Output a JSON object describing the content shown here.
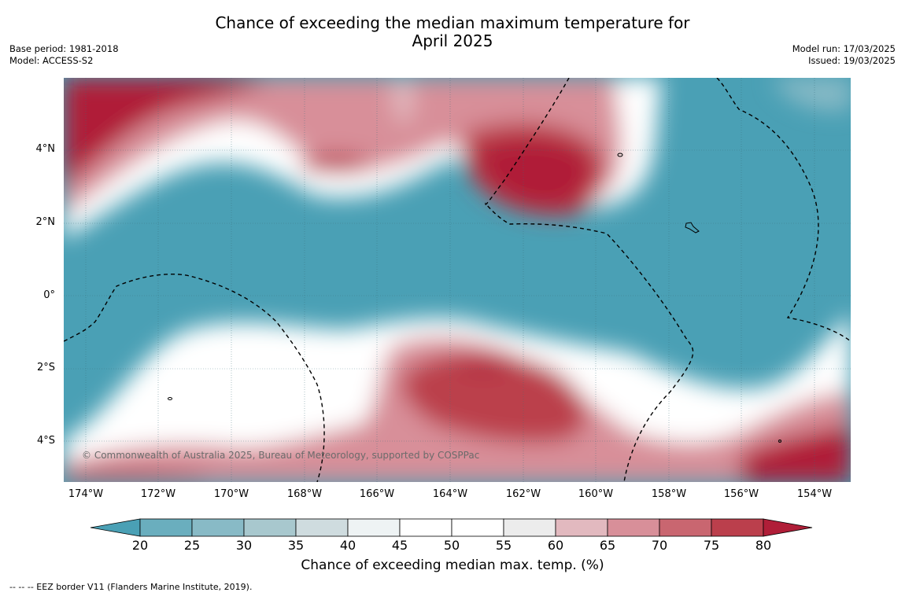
{
  "title_line1": "Chance of exceeding the median maximum temperature for",
  "title_line2": "April 2025",
  "meta_left": {
    "base_period": "Base period: 1981-2018",
    "model": "Model: ACCESS-S2"
  },
  "meta_right": {
    "model_run": "Model run: 17/03/2025",
    "issued": "Issued: 19/03/2025"
  },
  "map": {
    "lat_labels": [
      "4°N",
      "2°N",
      "0°",
      "2°S",
      "4°S"
    ],
    "lon_labels": [
      "174°W",
      "172°W",
      "170°W",
      "168°W",
      "166°W",
      "164°W",
      "162°W",
      "160°W",
      "158°W",
      "156°W",
      "154°W"
    ],
    "copyright": "© Commonwealth of Australia 2025, Bureau of Meteorology, supported by COSPPac"
  },
  "colorbar": {
    "ticks": [
      "20",
      "25",
      "30",
      "35",
      "40",
      "45",
      "50",
      "55",
      "60",
      "65",
      "70",
      "75",
      "80"
    ],
    "label": "Chance of exceeding median max. temp. (%)",
    "colors": [
      "#4aa0b5",
      "#6aaebe",
      "#88bac6",
      "#a8c8ce",
      "#cfdcdf",
      "#eef3f4",
      "#ffffff",
      "#ffffff",
      "#ececec",
      "#e2b9bf",
      "#d88f99",
      "#c96670",
      "#bb3f4c",
      "#b01e38"
    ]
  },
  "footnote": "-- -- -- EEZ border V11 (Flanders Marine Institute, 2019)."
}
